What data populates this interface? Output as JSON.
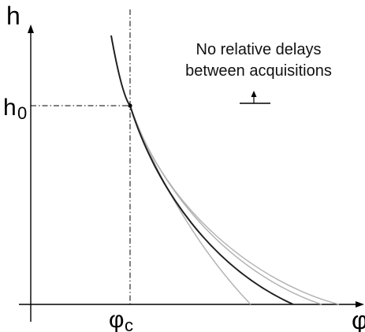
{
  "figure": {
    "y_axis_label": "h",
    "x_axis_label": "φ",
    "h0_label": "h",
    "h0_subscript": "0",
    "phic_label": "φ",
    "phic_subscript": "c",
    "annotation_line1": "No relative delays",
    "annotation_line2": "between acquisitions"
  },
  "colors": {
    "axes": "#000000",
    "main_curve": "#1a1a1a",
    "alt_curves": "#b0b0b0",
    "guide_lines": "#000000"
  }
}
